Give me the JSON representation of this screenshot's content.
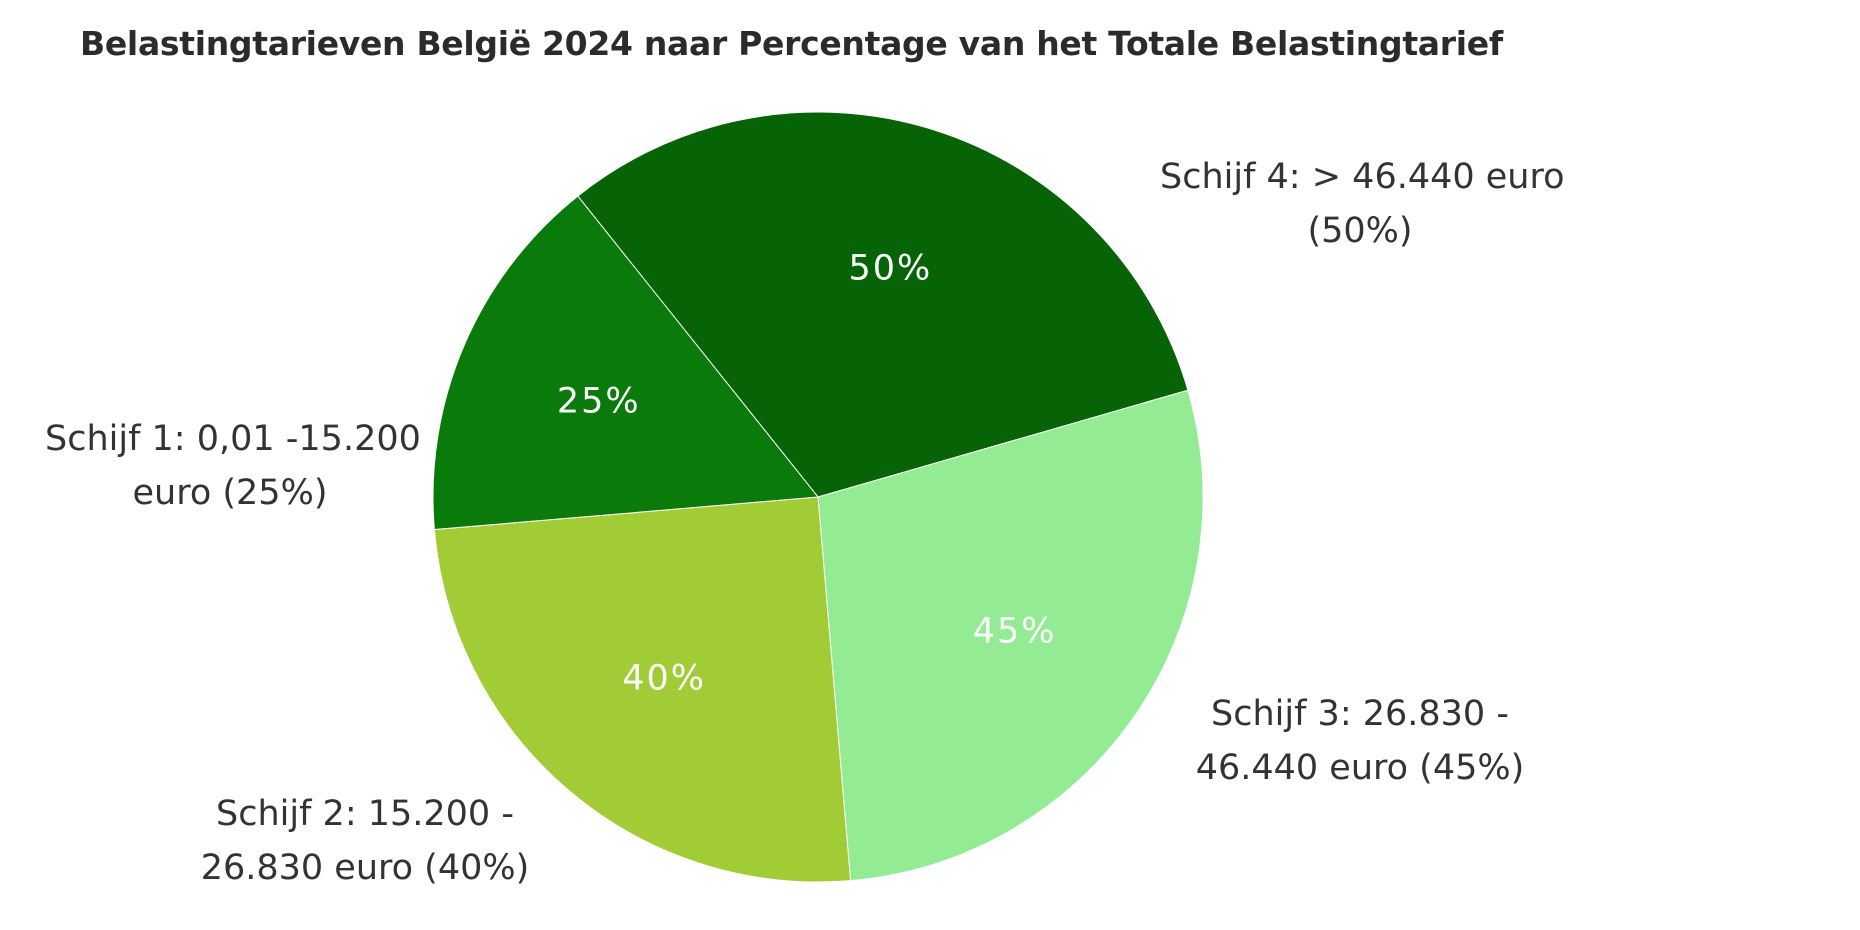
{
  "chart_data": {
    "type": "pie",
    "title": "Belastingtarieven België 2024 naar Percentage van het Totale Belastingtarief",
    "slices": [
      {
        "label": "Schijf 1: 0,01 -15.200 euro (25%)",
        "label_lines": [
          "Schijf 1: 0,01 -15.200",
          "euro (25%)"
        ],
        "value": 25,
        "value_label": "25%",
        "color": "#0a7a0a"
      },
      {
        "label": "Schijf 2: 15.200 - 26.830 euro (40%)",
        "label_lines": [
          "Schijf 2: 15.200 -",
          "26.830 euro (40%)"
        ],
        "value": 40,
        "value_label": "40%",
        "color": "#a2cc35"
      },
      {
        "label": "Schijf 3: 26.830 - 46.440 euro (45%)",
        "label_lines": [
          "Schijf 3: 26.830 -",
          "46.440 euro (45%)"
        ],
        "value": 45,
        "value_label": "45%",
        "color": "#93ec93"
      },
      {
        "label": "Schijf 4: > 46.440 euro (50%)",
        "label_lines": [
          "Schijf 4: > 46.440 euro",
          "(50%)"
        ],
        "value": 50,
        "value_label": "50%",
        "color": "#066306"
      }
    ],
    "legend": "none"
  }
}
